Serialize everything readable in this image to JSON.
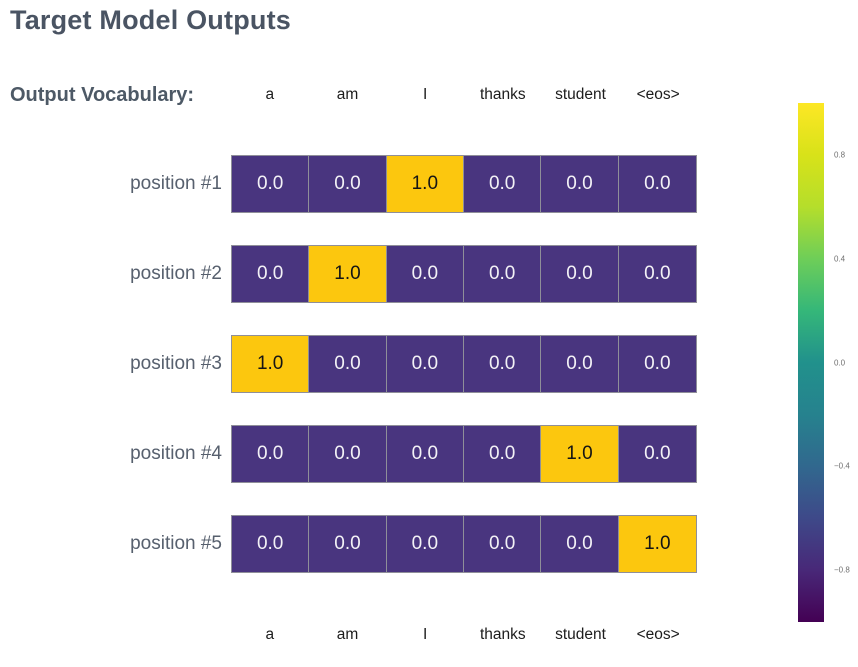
{
  "title": "Target Model Outputs",
  "vocab_label": "Output Vocabulary:",
  "vocabulary": [
    "a",
    "am",
    "I",
    "thanks",
    "student",
    "<eos>"
  ],
  "rows": [
    {
      "label": "position #1",
      "cells": [
        "0.0",
        "0.0",
        "1.0",
        "0.0",
        "0.0",
        "0.0"
      ]
    },
    {
      "label": "position #2",
      "cells": [
        "0.0",
        "1.0",
        "0.0",
        "0.0",
        "0.0",
        "0.0"
      ]
    },
    {
      "label": "position #3",
      "cells": [
        "1.0",
        "0.0",
        "0.0",
        "0.0",
        "0.0",
        "0.0"
      ]
    },
    {
      "label": "position #4",
      "cells": [
        "0.0",
        "0.0",
        "0.0",
        "0.0",
        "1.0",
        "0.0"
      ]
    },
    {
      "label": "position #5",
      "cells": [
        "0.0",
        "0.0",
        "0.0",
        "0.0",
        "0.0",
        "1.0"
      ]
    }
  ],
  "colorbar": {
    "ticks": [
      "0.8",
      "0.4",
      "0.0",
      "−0.4",
      "−0.8"
    ],
    "range": [
      -1,
      1
    ],
    "colormap": "viridis"
  },
  "colors": {
    "cell_low": "#49357f",
    "cell_high": "#fcc70e",
    "title_text": "#4a5463",
    "row_label_text": "#57606e"
  },
  "chart_data": {
    "type": "heatmap",
    "title": "Target Model Outputs",
    "columns": [
      "a",
      "am",
      "I",
      "thanks",
      "student",
      "<eos>"
    ],
    "row_labels": [
      "position #1",
      "position #2",
      "position #3",
      "position #4",
      "position #5"
    ],
    "values": [
      [
        0.0,
        0.0,
        1.0,
        0.0,
        0.0,
        0.0
      ],
      [
        0.0,
        1.0,
        0.0,
        0.0,
        0.0,
        0.0
      ],
      [
        1.0,
        0.0,
        0.0,
        0.0,
        0.0,
        0.0
      ],
      [
        0.0,
        0.0,
        0.0,
        0.0,
        1.0,
        0.0
      ],
      [
        0.0,
        0.0,
        0.0,
        0.0,
        0.0,
        1.0
      ]
    ],
    "colormap": "viridis",
    "colorbar_ticks": [
      0.8,
      0.4,
      0.0,
      -0.4,
      -0.8
    ],
    "colorbar_range": [
      -1,
      1
    ],
    "legend_position": "right",
    "grid": false
  }
}
